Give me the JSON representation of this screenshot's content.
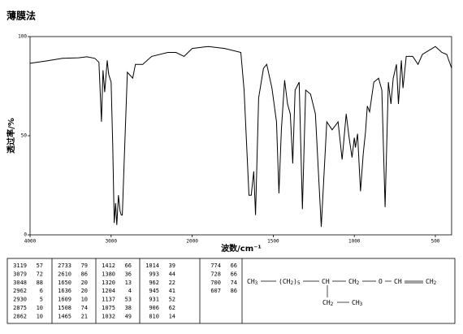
{
  "chart_data": {
    "type": "line",
    "title": "薄膜法",
    "xlabel": "波数/cm⁻¹",
    "ylabel": "透过率/%",
    "xlim": [
      4000,
      400
    ],
    "xticks": [
      4000,
      3000,
      2000,
      1500,
      1000,
      500
    ],
    "ylim": [
      0,
      100
    ],
    "yticks": [
      0,
      50,
      100
    ],
    "color": "#000000",
    "x": [
      4000,
      3800,
      3600,
      3400,
      3300,
      3200,
      3150,
      3119,
      3100,
      3079,
      3048,
      3030,
      3000,
      2980,
      2962,
      2945,
      2930,
      2910,
      2890,
      2875,
      2862,
      2840,
      2800,
      2733,
      2700,
      2610,
      2500,
      2300,
      2200,
      2100,
      2000,
      1900,
      1800,
      1700,
      1680,
      1650,
      1636,
      1620,
      1609,
      1590,
      1560,
      1540,
      1508,
      1480,
      1465,
      1450,
      1430,
      1412,
      1395,
      1380,
      1365,
      1340,
      1320,
      1300,
      1270,
      1240,
      1204,
      1170,
      1137,
      1100,
      1075,
      1050,
      1032,
      1014,
      1000,
      993,
      980,
      962,
      945,
      931,
      920,
      906,
      880,
      850,
      830,
      810,
      790,
      774,
      760,
      740,
      728,
      710,
      700,
      680,
      640,
      607,
      580,
      540,
      500,
      460,
      430,
      400
    ],
    "values": [
      86.5,
      87.7,
      89,
      89.3,
      89.8,
      89,
      87,
      57,
      83,
      72,
      88,
      81,
      77,
      45,
      6,
      16,
      5,
      20,
      12,
      10,
      10,
      36,
      82,
      79,
      86,
      86,
      90,
      92,
      92,
      90,
      94,
      95,
      94,
      92,
      73,
      20,
      20,
      32,
      10,
      69,
      84,
      86,
      74,
      57,
      21,
      53,
      78,
      66,
      61,
      36,
      73,
      77,
      13,
      73,
      71,
      61,
      4,
      57,
      53,
      57,
      38,
      61,
      49,
      39,
      49,
      44,
      51,
      22,
      41,
      52,
      65,
      62,
      77,
      79,
      73,
      14,
      77,
      66,
      79,
      86,
      66,
      88,
      74,
      90,
      90,
      86,
      91,
      93,
      95,
      92,
      91,
      84
    ]
  },
  "peak_table": [
    [
      [
        3119,
        57
      ],
      [
        3079,
        72
      ],
      [
        3048,
        88
      ],
      [
        2962,
        6
      ],
      [
        2930,
        5
      ],
      [
        2875,
        10
      ],
      [
        2862,
        10
      ]
    ],
    [
      [
        2733,
        79
      ],
      [
        2610,
        86
      ],
      [
        1650,
        20
      ],
      [
        1636,
        20
      ],
      [
        1609,
        10
      ],
      [
        1508,
        74
      ],
      [
        1465,
        21
      ]
    ],
    [
      [
        1412,
        66
      ],
      [
        1380,
        36
      ],
      [
        1320,
        13
      ],
      [
        1204,
        4
      ],
      [
        1137,
        53
      ],
      [
        1075,
        38
      ],
      [
        1032,
        49
      ]
    ],
    [
      [
        1014,
        39
      ],
      [
        993,
        44
      ],
      [
        962,
        22
      ],
      [
        945,
        41
      ],
      [
        931,
        52
      ],
      [
        906,
        62
      ],
      [
        810,
        14
      ]
    ],
    [
      [
        774,
        66
      ],
      [
        728,
        66
      ],
      [
        700,
        74
      ],
      [
        607,
        86
      ]
    ]
  ],
  "structure": {
    "main": [
      "CH3",
      "(CH2)5",
      "CH",
      "CH2",
      "O",
      "CH",
      "CH2"
    ],
    "branch": [
      "CH2",
      "CH3"
    ]
  }
}
